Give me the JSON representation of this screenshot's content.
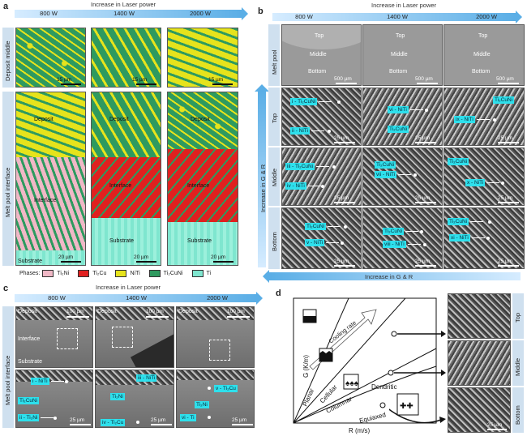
{
  "panel_a": {
    "letter": "a",
    "arrow_caption": "Increase in Laser power",
    "powers": [
      "800 W",
      "1400 W",
      "2000 W"
    ],
    "row_labels": [
      "Deposit middle",
      "Melt pool interface"
    ],
    "scale_15": "15 µm",
    "scale_20": "20 µm",
    "region_labels": {
      "deposit": "Deposit",
      "interface": "Interface",
      "substrate": "Substrate"
    },
    "legend_title": "Phases:",
    "phases": [
      {
        "name": "Ti₂Ni",
        "color": "#f0b8c6"
      },
      {
        "name": "Ti₂Cu",
        "color": "#e0201f"
      },
      {
        "name": "NiTi",
        "color": "#e6e31c"
      },
      {
        "name": "Ti₂CuNi",
        "color": "#2e9a5f"
      },
      {
        "name": "Ti",
        "color": "#7fe6cf"
      }
    ]
  },
  "panel_b": {
    "letter": "b",
    "arrow_caption": "Increase in Laser power",
    "powers": [
      "800 W",
      "1400 W",
      "2000 W"
    ],
    "melt_pool_label": "Melt pool",
    "melt_pool_positions": [
      "Top",
      "Middle",
      "Bottom"
    ],
    "scale_500": "500 µm",
    "scale_25": "25 µm",
    "rows": [
      "Top",
      "Middle",
      "Bottom"
    ],
    "side_arrow": "Increase in G & R",
    "bottom_arrow": "Increase in G & R",
    "tags": {
      "top": [
        "i - Ti₂CuNi",
        "ii - NiTi",
        "vi - NiTi",
        "Ti₂CuNi",
        "Ti₂CuNi",
        "ix - NiTi"
      ],
      "middle": [
        "iii - Ti₂CuNi",
        "iv - NiTi",
        "Ti₂CuNi",
        "vii - NiTi",
        "Ti₂CuNi",
        "x - NiTi"
      ],
      "bottom": [
        "Ti₂CuNi",
        "v - NiTi",
        "Ti₂CuNi",
        "viii - NiTi",
        "Ti₂CuNi",
        "xi - NiTi"
      ]
    }
  },
  "panel_c": {
    "letter": "c",
    "arrow_caption": "Increase in Laser power",
    "powers": [
      "800 W",
      "1400 W",
      "2000 W"
    ],
    "row_label": "Melt pool interface",
    "deposit": "Deposit",
    "interface": "Interface",
    "substrate": "Substrate",
    "scale_100": "100 µm",
    "scale_25": "25 µm",
    "tags": [
      [
        "i - NiTi",
        "Ti₂CuNi",
        "ii - Ti₂Ni"
      ],
      [
        "iii - NiTi",
        "Ti₂Ni",
        "iv - Ti₂Cu"
      ],
      [
        "v - Ti₂Cu",
        "Ti₂Ni",
        "vi - Ti"
      ]
    ]
  },
  "panel_d": {
    "letter": "d",
    "y_axis": "G (K/m)",
    "x_axis": "R (m/s)",
    "cooling_rate": "Cooling rate",
    "regions": [
      "Planar",
      "Cellular",
      "Columnar",
      "Equiaxed",
      "Dendritic"
    ],
    "rows": [
      "Top",
      "Middle",
      "Bottom"
    ],
    "scale": "25 µm"
  }
}
